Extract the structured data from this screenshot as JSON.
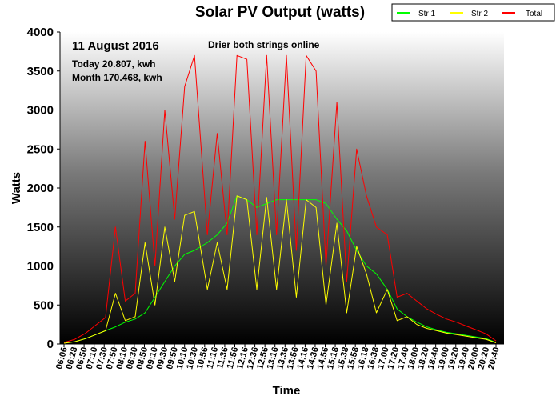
{
  "chart_data": {
    "type": "line",
    "title": "Solar PV Output (watts)",
    "xlabel": "Time",
    "ylabel": "Watts",
    "ylim": [
      0,
      4000
    ],
    "yticks": [
      "0",
      "500",
      "1000",
      "1500",
      "2000",
      "2500",
      "3000",
      "3500",
      "4000"
    ],
    "xticks": [
      "06:06",
      "06:28",
      "06:50",
      "07:10",
      "07:30",
      "07:50",
      "08:10",
      "08:30",
      "08:50",
      "09:10",
      "09:30",
      "09:50",
      "10:10",
      "10:30",
      "10:56",
      "11:16",
      "11:36",
      "11:56",
      "12:16",
      "12:36",
      "12:56",
      "13:16",
      "13:36",
      "13:56",
      "14:16",
      "14:36",
      "14:56",
      "15:18",
      "15:38",
      "15:58",
      "16:18",
      "16:38",
      "17:00",
      "17:20",
      "17:40",
      "18:00",
      "18:20",
      "18:40",
      "19:00",
      "19:20",
      "19:40",
      "20:00",
      "20:20",
      "20:40"
    ],
    "grid": false,
    "legend_position": "top-right",
    "annotations": {
      "date": "11 August 2016",
      "note": "Drier both strings online",
      "today": "Today 20.807, kwh",
      "month": "Month 170.468, kwh"
    },
    "series": [
      {
        "name": "Str 1",
        "color": "#00ff00",
        "points": [
          [
            "06:06",
            10
          ],
          [
            "06:28",
            30
          ],
          [
            "06:50",
            70
          ],
          [
            "07:10",
            120
          ],
          [
            "07:30",
            170
          ],
          [
            "07:50",
            220
          ],
          [
            "08:10",
            280
          ],
          [
            "08:30",
            320
          ],
          [
            "08:50",
            400
          ],
          [
            "09:10",
            600
          ],
          [
            "09:30",
            800
          ],
          [
            "09:50",
            1000
          ],
          [
            "10:10",
            1150
          ],
          [
            "10:30",
            1200
          ],
          [
            "10:56",
            1300
          ],
          [
            "11:16",
            1400
          ],
          [
            "11:36",
            1550
          ],
          [
            "11:56",
            1900
          ],
          [
            "12:16",
            1850
          ],
          [
            "12:36",
            1750
          ],
          [
            "12:56",
            1800
          ],
          [
            "13:16",
            1850
          ],
          [
            "13:36",
            1850
          ],
          [
            "13:56",
            1850
          ],
          [
            "14:16",
            1850
          ],
          [
            "14:36",
            1850
          ],
          [
            "14:56",
            1800
          ],
          [
            "15:18",
            1600
          ],
          [
            "15:38",
            1450
          ],
          [
            "15:58",
            1200
          ],
          [
            "16:18",
            1000
          ],
          [
            "16:38",
            900
          ],
          [
            "17:00",
            700
          ],
          [
            "17:20",
            450
          ],
          [
            "17:40",
            350
          ],
          [
            "18:00",
            280
          ],
          [
            "18:20",
            220
          ],
          [
            "18:40",
            180
          ],
          [
            "19:00",
            150
          ],
          [
            "19:20",
            130
          ],
          [
            "19:40",
            110
          ],
          [
            "20:00",
            90
          ],
          [
            "20:20",
            70
          ],
          [
            "20:40",
            20
          ]
        ]
      },
      {
        "name": "Str 2",
        "color": "#ffff00",
        "points": [
          [
            "06:06",
            10
          ],
          [
            "06:28",
            30
          ],
          [
            "06:50",
            70
          ],
          [
            "07:10",
            120
          ],
          [
            "07:30",
            170
          ],
          [
            "07:50",
            650
          ],
          [
            "08:10",
            300
          ],
          [
            "08:30",
            350
          ],
          [
            "08:50",
            1300
          ],
          [
            "09:10",
            500
          ],
          [
            "09:30",
            1500
          ],
          [
            "09:50",
            800
          ],
          [
            "10:10",
            1650
          ],
          [
            "10:30",
            1700
          ],
          [
            "10:56",
            700
          ],
          [
            "11:16",
            1300
          ],
          [
            "11:36",
            700
          ],
          [
            "11:56",
            1900
          ],
          [
            "12:16",
            1850
          ],
          [
            "12:36",
            700
          ],
          [
            "12:56",
            1880
          ],
          [
            "13:16",
            700
          ],
          [
            "13:36",
            1850
          ],
          [
            "13:56",
            600
          ],
          [
            "14:16",
            1850
          ],
          [
            "14:36",
            1750
          ],
          [
            "14:56",
            500
          ],
          [
            "15:18",
            1550
          ],
          [
            "15:38",
            400
          ],
          [
            "15:58",
            1250
          ],
          [
            "16:18",
            900
          ],
          [
            "16:38",
            400
          ],
          [
            "17:00",
            700
          ],
          [
            "17:20",
            300
          ],
          [
            "17:40",
            350
          ],
          [
            "18:00",
            250
          ],
          [
            "18:20",
            200
          ],
          [
            "18:40",
            170
          ],
          [
            "19:00",
            140
          ],
          [
            "19:20",
            120
          ],
          [
            "19:40",
            100
          ],
          [
            "20:00",
            80
          ],
          [
            "20:20",
            60
          ],
          [
            "20:40",
            15
          ]
        ]
      },
      {
        "name": "Total",
        "color": "#ff0000",
        "points": [
          [
            "06:06",
            20
          ],
          [
            "06:28",
            60
          ],
          [
            "06:50",
            140
          ],
          [
            "07:10",
            240
          ],
          [
            "07:30",
            340
          ],
          [
            "07:50",
            1500
          ],
          [
            "08:10",
            550
          ],
          [
            "08:30",
            650
          ],
          [
            "08:50",
            2600
          ],
          [
            "09:10",
            1000
          ],
          [
            "09:30",
            3000
          ],
          [
            "09:50",
            1600
          ],
          [
            "10:10",
            3300
          ],
          [
            "10:30",
            3700
          ],
          [
            "10:56",
            1400
          ],
          [
            "11:16",
            2700
          ],
          [
            "11:36",
            1400
          ],
          [
            "11:56",
            3700
          ],
          [
            "12:16",
            3650
          ],
          [
            "12:36",
            1400
          ],
          [
            "12:56",
            3700
          ],
          [
            "13:16",
            1400
          ],
          [
            "13:36",
            3700
          ],
          [
            "13:56",
            1200
          ],
          [
            "14:16",
            3700
          ],
          [
            "14:36",
            3500
          ],
          [
            "14:56",
            1000
          ],
          [
            "15:18",
            3100
          ],
          [
            "15:38",
            800
          ],
          [
            "15:58",
            2500
          ],
          [
            "16:18",
            1900
          ],
          [
            "16:38",
            1500
          ],
          [
            "17:00",
            1400
          ],
          [
            "17:20",
            600
          ],
          [
            "17:40",
            650
          ],
          [
            "18:00",
            550
          ],
          [
            "18:20",
            450
          ],
          [
            "18:40",
            380
          ],
          [
            "19:00",
            320
          ],
          [
            "19:20",
            280
          ],
          [
            "19:40",
            230
          ],
          [
            "20:00",
            180
          ],
          [
            "20:20",
            130
          ],
          [
            "20:40",
            40
          ]
        ]
      }
    ]
  }
}
